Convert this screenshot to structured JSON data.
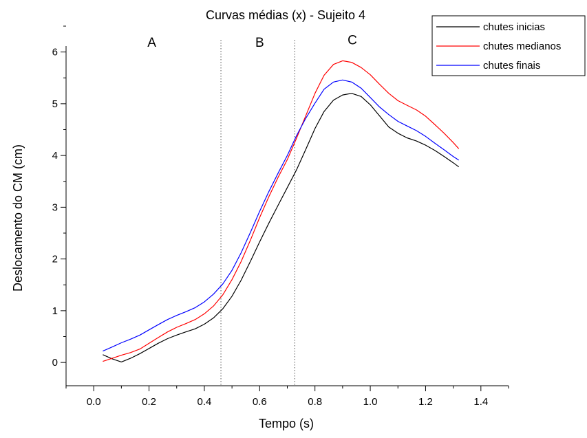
{
  "chart_data": {
    "type": "line",
    "title": "Curvas médias (x) - Sujeito 4",
    "xlabel": "Tempo (s)",
    "ylabel": "Deslocamento do CM (cm)",
    "xlim": [
      -0.1,
      1.5
    ],
    "ylim": [
      -0.45,
      6.5
    ],
    "xticks": [
      0.0,
      0.2,
      0.4,
      0.6,
      0.8,
      1.0,
      1.2,
      1.4
    ],
    "xtick_labels": [
      "0.0",
      "0.2",
      "0.4",
      "0.6",
      "0.8",
      "1.0",
      "1.2",
      "1.4"
    ],
    "yticks": [
      0,
      1,
      2,
      3,
      4,
      5,
      6
    ],
    "ytick_labels": [
      "0",
      "1",
      "2",
      "3",
      "4",
      "5",
      "6"
    ],
    "grid": false,
    "legend_position": "top-right",
    "phase_lines": [
      0.46,
      0.727
    ],
    "phase_labels": [
      {
        "label": "A",
        "x": 0.21,
        "y": 6.1
      },
      {
        "label": "B",
        "x": 0.6,
        "y": 6.1
      },
      {
        "label": "C",
        "x": 0.935,
        "y": 6.15
      }
    ],
    "x": [
      0.033,
      0.067,
      0.1,
      0.133,
      0.167,
      0.2,
      0.233,
      0.267,
      0.3,
      0.333,
      0.367,
      0.4,
      0.433,
      0.467,
      0.5,
      0.533,
      0.567,
      0.6,
      0.633,
      0.667,
      0.7,
      0.733,
      0.767,
      0.8,
      0.833,
      0.867,
      0.9,
      0.933,
      0.967,
      1.0,
      1.033,
      1.067,
      1.1,
      1.133,
      1.167,
      1.2,
      1.233,
      1.267,
      1.3,
      1.32
    ],
    "series": [
      {
        "name": "chutes inicias",
        "color": "#000000",
        "values": [
          0.15,
          0.07,
          0.01,
          0.08,
          0.17,
          0.27,
          0.37,
          0.46,
          0.53,
          0.59,
          0.65,
          0.74,
          0.86,
          1.04,
          1.28,
          1.59,
          1.96,
          2.33,
          2.69,
          3.04,
          3.38,
          3.72,
          4.12,
          4.52,
          4.85,
          5.07,
          5.17,
          5.2,
          5.14,
          4.98,
          4.77,
          4.55,
          4.43,
          4.34,
          4.28,
          4.2,
          4.1,
          3.98,
          3.86,
          3.78
        ]
      },
      {
        "name": "chutes medianos",
        "color": "#ff0000",
        "values": [
          0.02,
          0.08,
          0.14,
          0.19,
          0.26,
          0.37,
          0.48,
          0.59,
          0.68,
          0.75,
          0.83,
          0.94,
          1.09,
          1.31,
          1.6,
          1.95,
          2.37,
          2.8,
          3.2,
          3.58,
          3.92,
          4.33,
          4.77,
          5.2,
          5.55,
          5.76,
          5.83,
          5.8,
          5.7,
          5.56,
          5.38,
          5.2,
          5.06,
          4.97,
          4.88,
          4.76,
          4.6,
          4.43,
          4.25,
          4.13
        ]
      },
      {
        "name": "chutes finais",
        "color": "#0000ff",
        "values": [
          0.22,
          0.3,
          0.38,
          0.45,
          0.53,
          0.63,
          0.73,
          0.83,
          0.91,
          0.98,
          1.06,
          1.17,
          1.32,
          1.52,
          1.78,
          2.12,
          2.52,
          2.92,
          3.3,
          3.66,
          4.0,
          4.38,
          4.72,
          5.01,
          5.28,
          5.42,
          5.46,
          5.42,
          5.3,
          5.12,
          4.94,
          4.79,
          4.66,
          4.57,
          4.48,
          4.37,
          4.24,
          4.11,
          3.98,
          3.91
        ]
      }
    ]
  }
}
